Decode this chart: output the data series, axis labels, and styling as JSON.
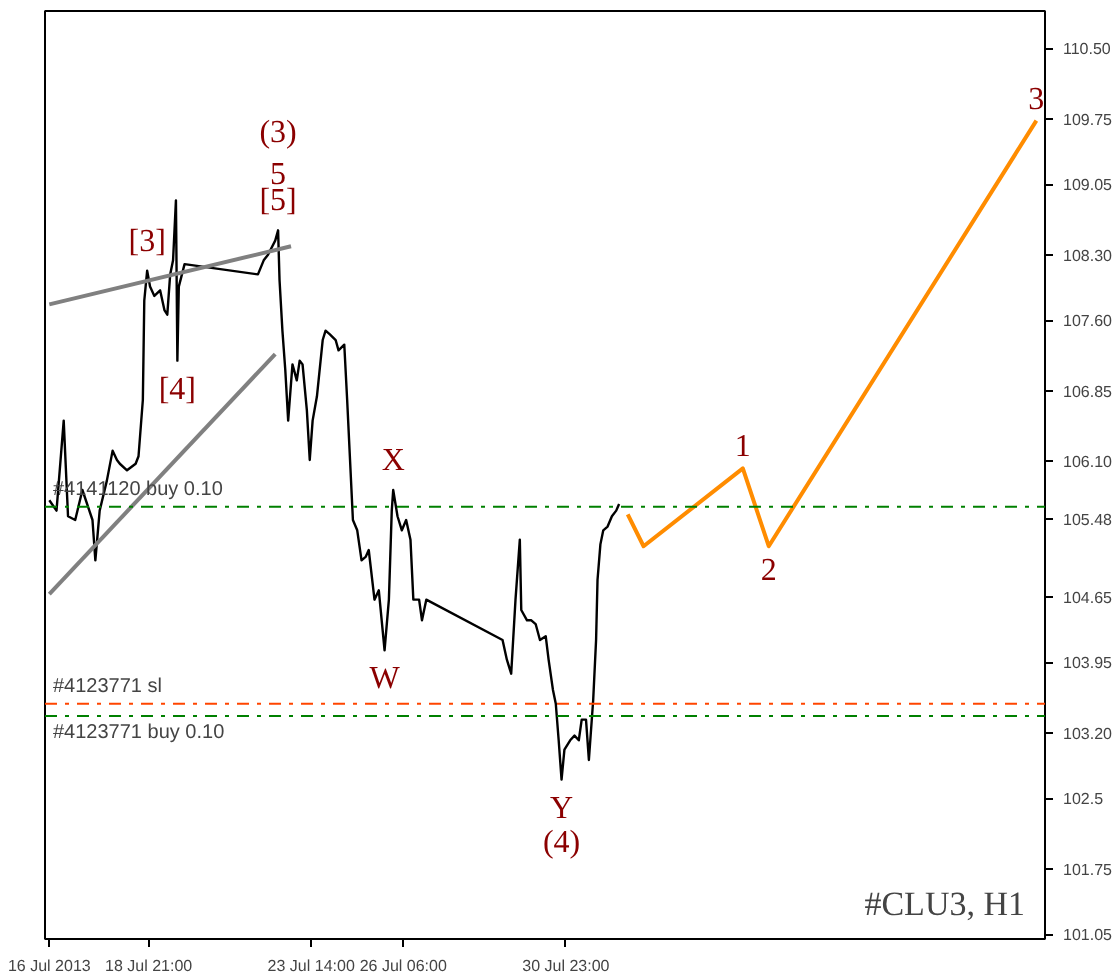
{
  "chart_data": {
    "type": "line",
    "xticks": [
      {
        "value": "2013-07-16T00:00",
        "label": "16 Jul 2013"
      },
      {
        "value": "2013-07-18T21:00",
        "label": "18 Jul 21:00"
      },
      {
        "value": "2013-07-23T14:00",
        "label": "23 Jul 14:00"
      },
      {
        "value": "2013-07-26T06:00",
        "label": "26 Jul 06:00"
      },
      {
        "value": "2013-07-30T23:00",
        "label": "30 Jul 23:00"
      }
    ],
    "xlim": [
      "2013-07-15T21:00",
      "2013-08-13T20:00"
    ],
    "ylim": [
      101.0,
      110.9
    ],
    "yticks": [
      101.05,
      101.75,
      102.5,
      {
        "value": 103.2,
        "label": "103.20"
      },
      103.95,
      104.65,
      {
        "value": 105.48,
        "label": "105.48"
      },
      {
        "value": 106.1,
        "label": "106.10"
      },
      106.85,
      {
        "value": 107.6,
        "label": "107.60"
      },
      {
        "value": 108.3,
        "label": "108.30"
      },
      109.05,
      109.75,
      {
        "value": 110.5,
        "label": "110.50"
      }
    ],
    "series": [
      {
        "color": "#000000",
        "x": [
          "2013-07-16T00:00",
          "2013-07-16T05:00",
          "2013-07-16T10:00",
          "2013-07-16T13:00",
          "2013-07-16T18:00",
          "2013-07-16T23:00",
          "2013-07-17T06:00",
          "2013-07-17T08:00",
          "2013-07-17T11:00",
          "2013-07-17T16:00",
          "2013-07-17T20:00",
          "2013-07-17T23:00",
          "2013-07-18T01:00",
          "2013-07-18T06:00",
          "2013-07-18T12:00",
          "2013-07-18T14:00",
          "2013-07-18T17:00",
          "2013-07-18T18:00",
          "2013-07-18T20:00",
          "2013-07-18T22:00",
          "2013-07-19T01:00",
          "2013-07-19T05:00",
          "2013-07-19T08:00",
          "2013-07-19T10:00",
          "2013-07-19T12:00",
          "2013-07-19T14:00",
          "2013-07-19T16:00",
          "2013-07-19T17:00",
          "2013-07-19T18:00",
          "2013-07-19T22:00",
          "2013-07-22T01:00",
          "2013-07-22T05:00",
          "2013-07-22T08:00",
          "2013-07-22T13:00",
          "2013-07-22T15:00",
          "2013-07-22T16:00",
          "2013-07-22T18:00",
          "2013-07-22T20:00",
          "2013-07-22T22:00",
          "2013-07-23T01:00",
          "2013-07-23T04:00",
          "2013-07-23T06:00",
          "2013-07-23T08:00",
          "2013-07-23T11:00",
          "2013-07-23T13:00",
          "2013-07-23T15:00",
          "2013-07-23T18:00",
          "2013-07-23T22:00",
          "2013-07-24T00:00",
          "2013-07-24T03:00",
          "2013-07-24T07:00",
          "2013-07-24T09:00",
          "2013-07-24T13:00",
          "2013-07-24T15:00",
          "2013-07-24T17:00",
          "2013-07-24T19:00",
          "2013-07-24T22:00",
          "2013-07-25T01:00",
          "2013-07-25T04:00",
          "2013-07-25T06:00",
          "2013-07-25T10:00",
          "2013-07-25T13:00",
          "2013-07-25T17:00",
          "2013-07-25T20:00",
          "2013-07-25T22:00",
          "2013-07-25T23:00",
          "2013-07-26T02:00",
          "2013-07-26T05:00",
          "2013-07-26T08:00",
          "2013-07-26T11:00",
          "2013-07-26T13:00",
          "2013-07-26T17:00",
          "2013-07-26T19:00",
          "2013-07-26T22:00",
          "2013-07-29T03:00",
          "2013-07-29T06:00",
          "2013-07-29T09:00",
          "2013-07-29T12:00",
          "2013-07-29T15:00",
          "2013-07-29T16:00",
          "2013-07-29T20:00",
          "2013-07-29T23:00",
          "2013-07-30T02:00",
          "2013-07-30T05:00",
          "2013-07-30T09:00",
          "2013-07-30T11:00",
          "2013-07-30T14:00",
          "2013-07-30T16:00",
          "2013-07-30T18:00",
          "2013-07-30T20:00",
          "2013-07-30T22:00",
          "2013-07-31T02:00",
          "2013-07-31T05:00",
          "2013-07-31T08:00",
          "2013-07-31T10:00",
          "2013-07-31T13:00",
          "2013-07-31T15:00",
          "2013-07-31T18:00",
          "2013-07-31T20:00",
          "2013-07-31T21:00",
          "2013-07-31T23:00",
          "2013-08-01T01:00",
          "2013-08-01T04:00",
          "2013-08-01T07:00",
          "2013-08-01T10:00",
          "2013-08-01T12:00"
        ],
        "values": [
          105.68,
          105.57,
          106.53,
          105.51,
          105.47,
          105.79,
          105.47,
          105.04,
          105.57,
          105.89,
          106.21,
          106.11,
          106.07,
          106.0,
          106.07,
          106.15,
          106.75,
          107.81,
          108.13,
          107.96,
          107.86,
          107.92,
          107.71,
          107.66,
          108.09,
          108.24,
          108.88,
          107.17,
          107.96,
          108.2,
          108.09,
          108.24,
          108.3,
          108.45,
          108.56,
          108.03,
          107.49,
          107.07,
          106.53,
          107.13,
          106.96,
          107.17,
          107.13,
          106.64,
          106.11,
          106.53,
          106.79,
          107.39,
          107.49,
          107.45,
          107.39,
          107.28,
          107.34,
          106.75,
          106.11,
          105.47,
          105.36,
          105.04,
          105.08,
          105.15,
          104.62,
          104.72,
          104.08,
          104.62,
          105.57,
          105.79,
          105.51,
          105.36,
          105.47,
          105.26,
          104.62,
          104.62,
          104.4,
          104.62,
          104.19,
          103.98,
          103.83,
          104.62,
          105.26,
          104.51,
          104.4,
          104.4,
          104.36,
          104.19,
          104.23,
          103.98,
          103.66,
          103.51,
          103.12,
          102.7,
          103.02,
          103.12,
          103.17,
          103.12,
          103.34,
          103.34,
          102.91,
          103.55,
          104.19,
          104.83,
          105.21,
          105.36,
          105.4,
          105.51,
          105.57,
          105.64
        ]
      },
      {
        "color": "#ff8c00",
        "x": [
          "2013-08-01T18:00",
          "2013-08-02T05:00",
          "2013-08-05T02:00",
          "2013-08-05T20:00",
          "2013-08-13T14:00"
        ],
        "values": [
          105.53,
          105.19,
          106.02,
          105.19,
          109.73
        ]
      },
      {
        "color": "#808080",
        "x": [
          "2013-07-16T00:00",
          "2013-07-23T00:00"
        ],
        "values": [
          107.77,
          108.39
        ]
      },
      {
        "color": "#808080",
        "x": [
          "2013-07-16T00:00",
          "2013-07-22T13:00"
        ],
        "values": [
          104.68,
          107.24
        ]
      }
    ],
    "ref_lines": [
      {
        "axis": "y",
        "value": 105.61,
        "label": "#4141120 buy 0.10",
        "color": "#008000",
        "line_style": "dashdot"
      },
      {
        "axis": "y",
        "value": 103.51,
        "label": "#4123771 sl",
        "color": "#ff4500",
        "line_style": "dashdot"
      },
      {
        "axis": "y",
        "value": 103.38,
        "label": "#4123771 buy 0.10",
        "color": "#008000",
        "line_style": "dashdot"
      }
    ],
    "annotations": [
      {
        "text": "(3)",
        "x": "2013-07-22T15:00",
        "y": 108.56
      },
      {
        "text": "5",
        "x": "2013-07-22T15:00",
        "y": 108.56
      },
      {
        "text": "[5]",
        "x": "2013-07-22T15:00",
        "y": 108.56
      },
      {
        "text": "[3]",
        "x": "2013-07-18T20:00",
        "y": 108.13
      },
      {
        "text": "[4]",
        "x": "2013-07-19T17:00",
        "y": 107.17
      },
      {
        "text": "X",
        "x": "2013-07-25T23:00",
        "y": 105.79
      },
      {
        "text": "W",
        "x": "2013-07-25T17:00",
        "y": 104.08
      },
      {
        "text": "Y",
        "x": "2013-07-30T20:00",
        "y": 102.7
      },
      {
        "text": "(4)",
        "x": "2013-07-30T20:00",
        "y": 102.7
      },
      {
        "text": "1",
        "x": "2013-08-05T02:00",
        "y": 106.02
      },
      {
        "text": "2",
        "x": "2013-08-05T20:00",
        "y": 105.19
      },
      {
        "text": "3",
        "x": "2013-08-13T14:00",
        "y": 109.73
      },
      "#CLU3, H1"
    ],
    "grid": false
  }
}
